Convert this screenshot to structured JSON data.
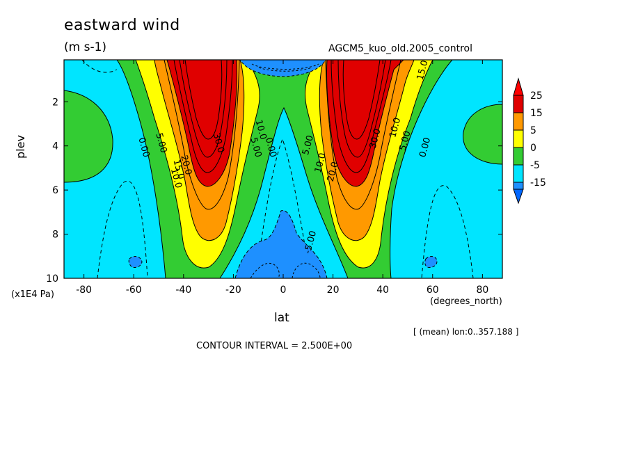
{
  "chart_data": {
    "type": "contour",
    "title": "eastward wind",
    "units": "(m s-1)",
    "dataset": "AGCM5_kuo_old.2005_control",
    "xlabel": "lat",
    "xunit": "(degrees_north)",
    "ylabel": "plev",
    "yunit": "(x1E4 Pa)",
    "x_ticks": [
      -80,
      -60,
      -40,
      -20,
      0,
      20,
      40,
      60,
      80
    ],
    "y_ticks": [
      2,
      4,
      6,
      8,
      10
    ],
    "xlim": [
      -88,
      88
    ],
    "ylim": [
      0.1,
      10
    ],
    "y_inverted": true,
    "averaging_note": "[ (mean) lon:0..357.188 ]",
    "contour_interval_text": "CONTOUR INTERVAL = 2.500E+00",
    "colorbar": {
      "levels": [
        "25",
        "15",
        "5",
        "0",
        "-5",
        "-15"
      ],
      "colors": [
        "#e00000",
        "#ff9900",
        "#ffff00",
        "#33cc33",
        "#00e5ff",
        "#1e90ff",
        "#ff0000",
        "#0066ff"
      ]
    },
    "contour_labels": [
      {
        "text": "0.00",
        "lat": -57,
        "p": 4.1
      },
      {
        "text": "5.00",
        "lat": -50,
        "p": 3.9
      },
      {
        "text": "10.0",
        "lat": -44,
        "p": 5.5
      },
      {
        "text": "15.0",
        "lat": -43,
        "p": 5.1
      },
      {
        "text": "20.0",
        "lat": -40,
        "p": 4.9
      },
      {
        "text": "30.0",
        "lat": -27,
        "p": 3.9
      },
      {
        "text": "5.00",
        "lat": -12,
        "p": 4.1
      },
      {
        "text": "0.00",
        "lat": -6,
        "p": 4.1
      },
      {
        "text": "10.0",
        "lat": -10,
        "p": 3.3
      },
      {
        "text": "5.00",
        "lat": 11,
        "p": 4.0
      },
      {
        "text": "10.0",
        "lat": 16,
        "p": 4.8
      },
      {
        "text": "20.0",
        "lat": 21,
        "p": 5.2
      },
      {
        "text": "30.0",
        "lat": 38,
        "p": 3.7
      },
      {
        "text": "10.0",
        "lat": 46,
        "p": 3.2
      },
      {
        "text": "5.00",
        "lat": 50,
        "p": 3.8
      },
      {
        "text": "0.00",
        "lat": 58,
        "p": 4.1
      },
      {
        "text": "-5.00",
        "lat": 12,
        "p": 8.4
      },
      {
        "text": "15.0",
        "lat": 57,
        "p": 0.6
      }
    ]
  }
}
